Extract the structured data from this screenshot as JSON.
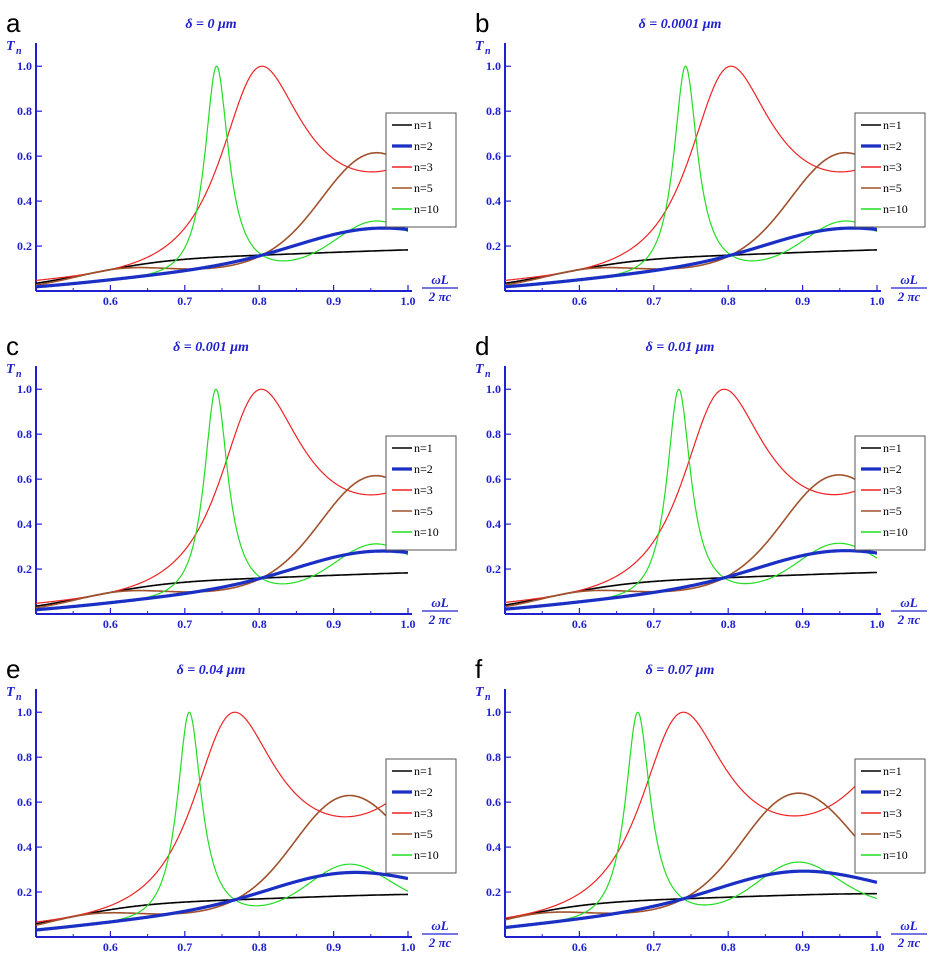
{
  "chart_data": [
    {
      "panel": "a",
      "type": "line",
      "title": "δ = 0 μm",
      "delta": 0,
      "xlabel_num": "ωL",
      "xlabel_den": "2 πc",
      "ylabel": "T",
      "ylabel_sub": "n",
      "xticks": [
        "0.6",
        "0.7",
        "0.8",
        "0.9",
        "1.0"
      ],
      "yticks": [
        "0.2",
        "0.4",
        "0.6",
        "0.8",
        "1.0"
      ],
      "xlim": [
        0.5,
        1.0
      ],
      "ylim": [
        0,
        1.05
      ],
      "legend_position": "right",
      "series": [
        {
          "name": "n=1",
          "color": "#000000"
        },
        {
          "name": "n=2",
          "color": "#1a2fc4"
        },
        {
          "name": "n=3",
          "color": "#ee2222"
        },
        {
          "name": "n=5",
          "color": "#a0522d"
        },
        {
          "name": "n=10",
          "color": "#22dd22"
        }
      ]
    },
    {
      "panel": "b",
      "type": "line",
      "title": "δ = 0.0001 μm",
      "delta": 0.0001,
      "xlabel_num": "ωL",
      "xlabel_den": "2 πc",
      "ylabel": "T",
      "ylabel_sub": "n",
      "xticks": [
        "0.6",
        "0.7",
        "0.8",
        "0.9",
        "1.0"
      ],
      "yticks": [
        "0.2",
        "0.4",
        "0.6",
        "0.8",
        "1.0"
      ],
      "xlim": [
        0.5,
        1.0
      ],
      "ylim": [
        0,
        1.05
      ],
      "legend_position": "right",
      "series": [
        {
          "name": "n=1",
          "color": "#000000"
        },
        {
          "name": "n=2",
          "color": "#1a2fc4"
        },
        {
          "name": "n=3",
          "color": "#ee2222"
        },
        {
          "name": "n=5",
          "color": "#a0522d"
        },
        {
          "name": "n=10",
          "color": "#22dd22"
        }
      ]
    },
    {
      "panel": "c",
      "type": "line",
      "title": "δ = 0.001 μm",
      "delta": 0.001,
      "xlabel_num": "ωL",
      "xlabel_den": "2 πc",
      "ylabel": "T",
      "ylabel_sub": "n",
      "xticks": [
        "0.6",
        "0.7",
        "0.8",
        "0.9",
        "1.0"
      ],
      "yticks": [
        "0.2",
        "0.4",
        "0.6",
        "0.8",
        "1.0"
      ],
      "xlim": [
        0.5,
        1.0
      ],
      "ylim": [
        0,
        1.05
      ],
      "legend_position": "right",
      "series": [
        {
          "name": "n=1",
          "color": "#000000"
        },
        {
          "name": "n=2",
          "color": "#1a2fc4"
        },
        {
          "name": "n=3",
          "color": "#ee2222"
        },
        {
          "name": "n=5",
          "color": "#a0522d"
        },
        {
          "name": "n=10",
          "color": "#22dd22"
        }
      ]
    },
    {
      "panel": "d",
      "type": "line",
      "title": "δ = 0.01 μm",
      "delta": 0.01,
      "xlabel_num": "ωL",
      "xlabel_den": "2 πc",
      "ylabel": "T",
      "ylabel_sub": "n",
      "xticks": [
        "0.6",
        "0.7",
        "0.8",
        "0.9",
        "1.0"
      ],
      "yticks": [
        "0.2",
        "0.4",
        "0.6",
        "0.8",
        "1.0"
      ],
      "xlim": [
        0.5,
        1.0
      ],
      "ylim": [
        0,
        1.05
      ],
      "legend_position": "right",
      "series": [
        {
          "name": "n=1",
          "color": "#000000"
        },
        {
          "name": "n=2",
          "color": "#1a2fc4"
        },
        {
          "name": "n=3",
          "color": "#ee2222"
        },
        {
          "name": "n=5",
          "color": "#a0522d"
        },
        {
          "name": "n=10",
          "color": "#22dd22"
        }
      ]
    },
    {
      "panel": "e",
      "type": "line",
      "title": "δ = 0.04 μm",
      "delta": 0.04,
      "xlabel_num": "ωL",
      "xlabel_den": "2 πc",
      "ylabel": "T",
      "ylabel_sub": "n",
      "xticks": [
        "0.6",
        "0.7",
        "0.8",
        "0.9",
        "1.0"
      ],
      "yticks": [
        "0.2",
        "0.4",
        "0.6",
        "0.8",
        "1.0"
      ],
      "xlim": [
        0.5,
        1.0
      ],
      "ylim": [
        0,
        1.05
      ],
      "legend_position": "right",
      "series": [
        {
          "name": "n=1",
          "color": "#000000"
        },
        {
          "name": "n=2",
          "color": "#1a2fc4"
        },
        {
          "name": "n=3",
          "color": "#ee2222"
        },
        {
          "name": "n=5",
          "color": "#a0522d"
        },
        {
          "name": "n=10",
          "color": "#22dd22"
        }
      ]
    },
    {
      "panel": "f",
      "type": "line",
      "title": "δ = 0.07 μm",
      "delta": 0.07,
      "xlabel_num": "ωL",
      "xlabel_den": "2 πc",
      "ylabel": "T",
      "ylabel_sub": "n",
      "xticks": [
        "0.6",
        "0.7",
        "0.8",
        "0.9",
        "1.0"
      ],
      "yticks": [
        "0.2",
        "0.4",
        "0.6",
        "0.8",
        "1.0"
      ],
      "xlim": [
        0.5,
        1.0
      ],
      "ylim": [
        0,
        1.05
      ],
      "legend_position": "right",
      "series": [
        {
          "name": "n=1",
          "color": "#000000"
        },
        {
          "name": "n=2",
          "color": "#1a2fc4"
        },
        {
          "name": "n=3",
          "color": "#ee2222"
        },
        {
          "name": "n=5",
          "color": "#a0522d"
        },
        {
          "name": "n=10",
          "color": "#22dd22"
        }
      ]
    }
  ]
}
